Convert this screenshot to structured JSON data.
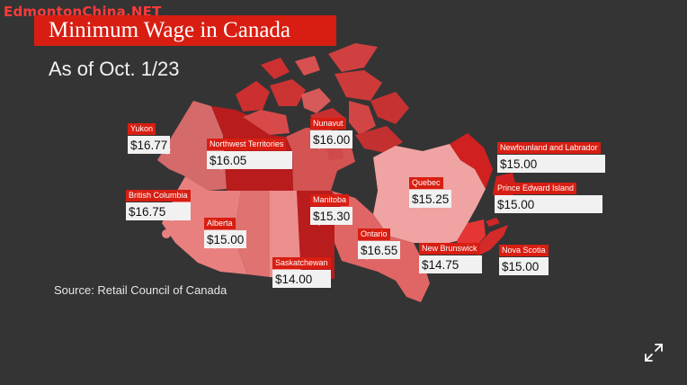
{
  "watermark": "EdmontonChina.NET",
  "title": "Minimum Wage in Canada",
  "subtitle": "As of Oct. 1/23",
  "source": "Source: Retail Council of Canada",
  "colors": {
    "background": "#343434",
    "title_bar": "#d81e12",
    "label_bar": "#d81e12",
    "value_box": "#f1f1f1"
  },
  "regions": [
    {
      "id": "yukon",
      "name": "Yukon",
      "wage": "$16.77"
    },
    {
      "id": "nwt",
      "name": "Northwest Territories",
      "wage": "$16.05"
    },
    {
      "id": "nunavut",
      "name": "Nunavut",
      "wage": "$16.00"
    },
    {
      "id": "bc",
      "name": "British Columbia",
      "wage": "$16.75"
    },
    {
      "id": "alberta",
      "name": "Alberta",
      "wage": "$15.00"
    },
    {
      "id": "saskatchewan",
      "name": "Saskatchewan",
      "wage": "$14.00"
    },
    {
      "id": "manitoba",
      "name": "Manitoba",
      "wage": "$15.30"
    },
    {
      "id": "ontario",
      "name": "Ontario",
      "wage": "$16.55"
    },
    {
      "id": "quebec",
      "name": "Quebec",
      "wage": "$15.25"
    },
    {
      "id": "nl",
      "name": "Newfounland and Labrador",
      "wage": "$15.00"
    },
    {
      "id": "pei",
      "name": "Prince Edward Island",
      "wage": "$15.00"
    },
    {
      "id": "nb",
      "name": "New Brunswick",
      "wage": "$14.75"
    },
    {
      "id": "ns",
      "name": "Nova Scotia",
      "wage": "$15.00"
    }
  ],
  "expand_icon": "expand-icon"
}
